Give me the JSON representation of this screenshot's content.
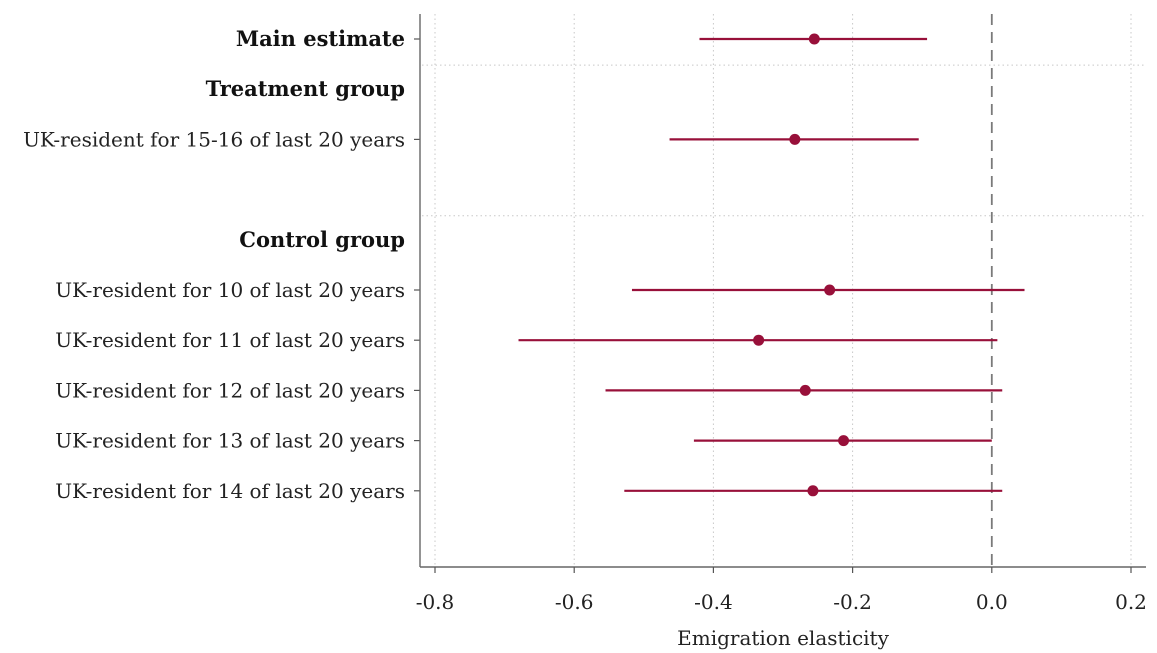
{
  "chart_data": {
    "type": "scatter",
    "subtype": "coefficient-plot-with-confidence-intervals",
    "xlabel": "Emigration elasticity",
    "xlim": [
      -0.82,
      0.22
    ],
    "xticks": [
      -0.8,
      -0.6,
      -0.4,
      -0.2,
      0.0,
      0.2
    ],
    "xtick_labels": [
      "-0.8",
      "-0.6",
      "-0.4",
      "-0.2",
      "0.0",
      "0.2"
    ],
    "reference_line_x": 0.0,
    "grid": true,
    "marker_color": "#98103a",
    "rows": [
      {
        "kind": "estimate",
        "label": "Main estimate",
        "bold": true,
        "estimate": -0.255,
        "ci_low": -0.42,
        "ci_high": -0.093
      },
      {
        "kind": "separator"
      },
      {
        "kind": "header",
        "label": "Treatment group"
      },
      {
        "kind": "estimate",
        "label": "UK-resident for 15-16 of last 20 years",
        "estimate": -0.283,
        "ci_low": -0.463,
        "ci_high": -0.105
      },
      {
        "kind": "spacer"
      },
      {
        "kind": "separator"
      },
      {
        "kind": "header",
        "label": "Control group"
      },
      {
        "kind": "estimate",
        "label": "UK-resident for 10 of last 20 years",
        "estimate": -0.233,
        "ci_low": -0.517,
        "ci_high": 0.047
      },
      {
        "kind": "estimate",
        "label": "UK-resident for 11 of last 20 years",
        "estimate": -0.335,
        "ci_low": -0.68,
        "ci_high": 0.008
      },
      {
        "kind": "estimate",
        "label": "UK-resident for 12 of last 20 years",
        "estimate": -0.268,
        "ci_low": -0.555,
        "ci_high": 0.015
      },
      {
        "kind": "estimate",
        "label": "UK-resident for 13 of last 20 years",
        "estimate": -0.213,
        "ci_low": -0.428,
        "ci_high": 0.0
      },
      {
        "kind": "estimate",
        "label": "UK-resident for 14 of last 20 years",
        "estimate": -0.257,
        "ci_low": -0.528,
        "ci_high": 0.015
      }
    ]
  }
}
